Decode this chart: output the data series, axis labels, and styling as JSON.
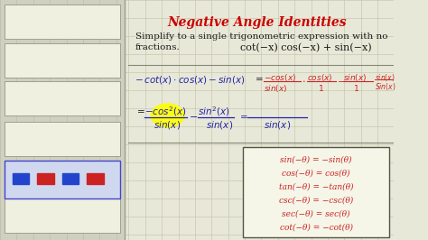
{
  "bg_color": "#e8e8d8",
  "grid_color": "#c8c8b0",
  "title": "Negative Angle Identities",
  "title_color": "#cc0000",
  "subtitle": "Simplify to a single trigonometric expression with no",
  "subtitle2": "fractions.",
  "problem": "cot(−x) cos(−x) + sin(−x)",
  "left_panel_color": "#d0d0c0",
  "box_color": "#f5f5e8",
  "identities": [
    "sin(−θ) = −sin(θ)",
    "cos(−θ) = cos(θ)",
    "tan(−θ) = −tan(θ)",
    "csc(−θ) = −csc(θ)",
    "sec(−θ) = sec(θ)",
    "cot(−θ) = −cot(θ)"
  ],
  "figsize": [
    4.74,
    2.66
  ],
  "dpi": 100
}
